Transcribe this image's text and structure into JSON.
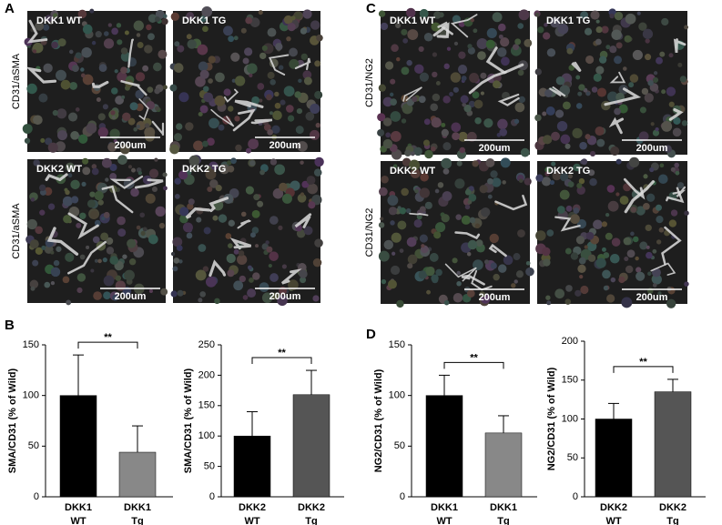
{
  "panels": [
    {
      "letter": "A",
      "row_labels": [
        "CD31/aSMA",
        "CD31/aSMA"
      ],
      "images": [
        {
          "label": "DKK1  WT",
          "scale": "200um"
        },
        {
          "label": "DKK1  TG",
          "scale": "200um"
        },
        {
          "label": "DKK2  WT",
          "scale": "200um"
        },
        {
          "label": "DKK2  TG",
          "scale": "200um"
        }
      ]
    },
    {
      "letter": "C",
      "row_labels": [
        "CD31/NG2",
        "CD31/NG2"
      ],
      "images": [
        {
          "label": "DKK1  WT",
          "scale": "200um"
        },
        {
          "label": "DKK1  TG",
          "scale": "200um"
        },
        {
          "label": "DKK2  WT",
          "scale": "200um"
        },
        {
          "label": "DKK2  TG",
          "scale": "200um"
        }
      ]
    }
  ],
  "chart_letters": [
    "B",
    "D"
  ],
  "chart_data": [
    {
      "type": "bar",
      "y_label": "SMA/CD31 (% of Wild)",
      "categories": [
        [
          "DKK1",
          "WT"
        ],
        [
          "DKK1",
          "Tg"
        ]
      ],
      "values": [
        100,
        44
      ],
      "errors": [
        40,
        26
      ],
      "colors": [
        "#000000",
        "#888888"
      ],
      "ylim": [
        0,
        150
      ],
      "yticks": [
        0,
        50,
        100,
        150
      ],
      "significance": "**"
    },
    {
      "type": "bar",
      "y_label": "SMA/CD31 (% of Wild)",
      "categories": [
        [
          "DKK2",
          "WT"
        ],
        [
          "DKK2",
          "Tg"
        ]
      ],
      "values": [
        100,
        168
      ],
      "errors": [
        40,
        40
      ],
      "colors": [
        "#000000",
        "#555555"
      ],
      "ylim": [
        0,
        250
      ],
      "yticks": [
        0,
        50,
        100,
        150,
        200,
        250
      ],
      "significance": "**"
    },
    {
      "type": "bar",
      "y_label": "NG2/CD31 (% of Wild)",
      "categories": [
        [
          "DKK1",
          "WT"
        ],
        [
          "DKK1",
          "Tg"
        ]
      ],
      "values": [
        100,
        63
      ],
      "errors": [
        20,
        17
      ],
      "colors": [
        "#000000",
        "#888888"
      ],
      "ylim": [
        0,
        150
      ],
      "yticks": [
        0,
        50,
        100,
        150
      ],
      "significance": "**"
    },
    {
      "type": "bar",
      "y_label": "NG2/CD31 (% of Wild)",
      "categories": [
        [
          "DKK2",
          "WT"
        ],
        [
          "DKK2",
          "Tg"
        ]
      ],
      "values": [
        100,
        135
      ],
      "errors": [
        20,
        16
      ],
      "colors": [
        "#000000",
        "#555555"
      ],
      "ylim": [
        0,
        200
      ],
      "yticks": [
        0,
        50,
        100,
        150,
        200
      ],
      "significance": "**"
    }
  ]
}
